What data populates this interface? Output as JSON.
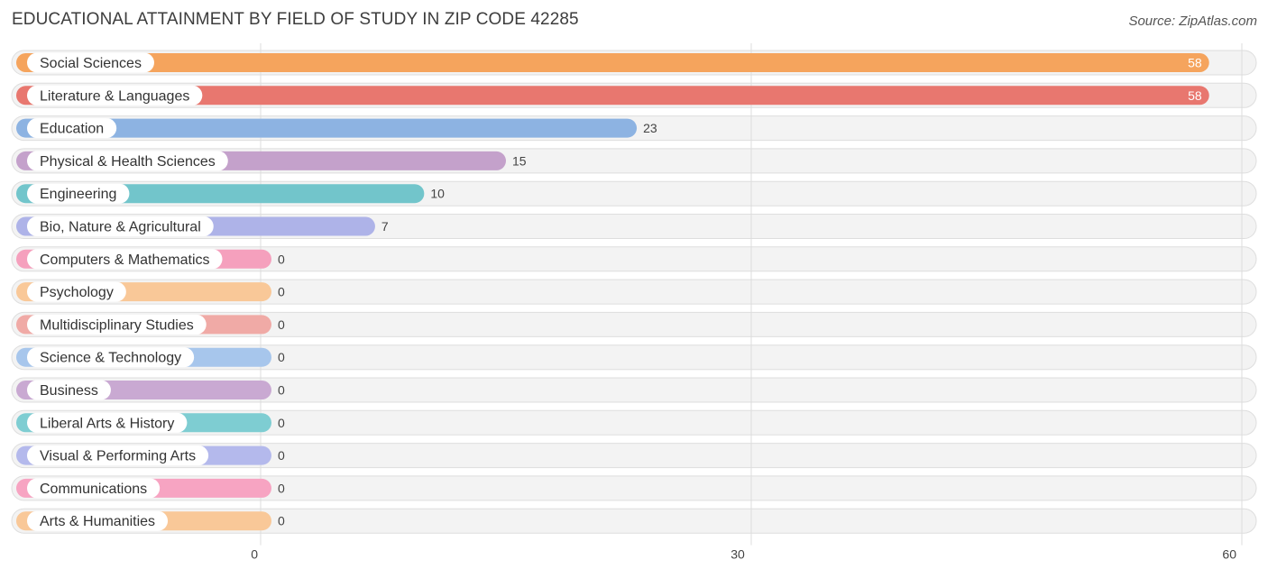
{
  "header": {
    "title": "EDUCATIONAL ATTAINMENT BY FIELD OF STUDY IN ZIP CODE 42285",
    "source": "Source: ZipAtlas.com"
  },
  "chart_data": {
    "type": "bar",
    "orientation": "horizontal",
    "title": "EDUCATIONAL ATTAINMENT BY FIELD OF STUDY IN ZIP CODE 42285",
    "xlabel": "",
    "ylabel": "",
    "xlim": [
      0,
      60
    ],
    "xticks": [
      0,
      30,
      60
    ],
    "grid": true,
    "categories": [
      "Social Sciences",
      "Literature & Languages",
      "Education",
      "Physical & Health Sciences",
      "Engineering",
      "Bio, Nature & Agricultural",
      "Computers & Mathematics",
      "Psychology",
      "Multidisciplinary Studies",
      "Science & Technology",
      "Business",
      "Liberal Arts & History",
      "Visual & Performing Arts",
      "Communications",
      "Arts & Humanities"
    ],
    "values": [
      58,
      58,
      23,
      15,
      10,
      7,
      0,
      0,
      0,
      0,
      0,
      0,
      0,
      0,
      0
    ],
    "colors": [
      "#f5a45d",
      "#e8776f",
      "#8db3e2",
      "#c4a1cb",
      "#72c5cb",
      "#aeb3e8",
      "#f5a0bd",
      "#f9c898",
      "#f0aaa6",
      "#a7c6ec",
      "#c9a9d2",
      "#7ecdd2",
      "#b4b9ec",
      "#f7a4c2",
      "#f9c898"
    ]
  }
}
